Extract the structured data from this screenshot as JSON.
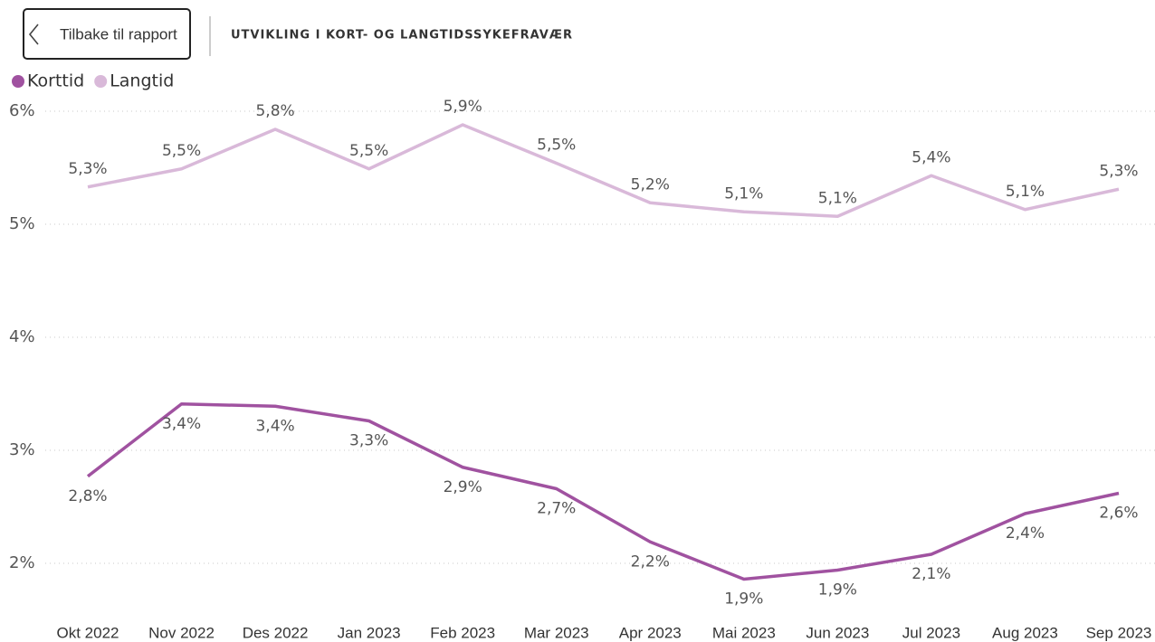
{
  "back_button": "Tilbake til rapport",
  "chart_data": {
    "type": "line",
    "title": "UTVIKLING I KORT- OG LANGTIDSSYKEFRAVÆR",
    "categories": [
      "Okt 2022",
      "Nov 2022",
      "Des 2022",
      "Jan 2023",
      "Feb 2023",
      "Mar 2023",
      "Apr 2023",
      "Mai 2023",
      "Jun 2023",
      "Jul 2023",
      "Aug 2023",
      "Sep 2023"
    ],
    "series": [
      {
        "name": "Korttid",
        "color": "#a052a0",
        "values": [
          2.77,
          3.41,
          3.39,
          3.26,
          2.85,
          2.66,
          2.19,
          1.86,
          1.94,
          2.08,
          2.44,
          2.62
        ],
        "value_labels": [
          "2,8%",
          "3,4%",
          "3,4%",
          "3,3%",
          "2,9%",
          "2,7%",
          "2,2%",
          "1,9%",
          "1,9%",
          "2,1%",
          "2,4%",
          "2,6%"
        ]
      },
      {
        "name": "Langtid",
        "color": "#d9b9d9",
        "values": [
          5.33,
          5.49,
          5.84,
          5.49,
          5.88,
          5.54,
          5.19,
          5.11,
          5.07,
          5.43,
          5.13,
          5.31
        ],
        "value_labels": [
          "5,3%",
          "5,5%",
          "5,8%",
          "5,5%",
          "5,9%",
          "5,5%",
          "5,2%",
          "5,1%",
          "5,1%",
          "5,4%",
          "5,1%",
          "5,3%"
        ]
      }
    ],
    "ylim": [
      1.6,
      6.1
    ],
    "yticks": [
      {
        "value": 2,
        "label": "2%"
      },
      {
        "value": 3,
        "label": "3%"
      },
      {
        "value": 4,
        "label": "4%"
      },
      {
        "value": 5,
        "label": "5%"
      },
      {
        "value": 6,
        "label": "6%"
      }
    ],
    "grid": true,
    "legend": "top-left"
  }
}
